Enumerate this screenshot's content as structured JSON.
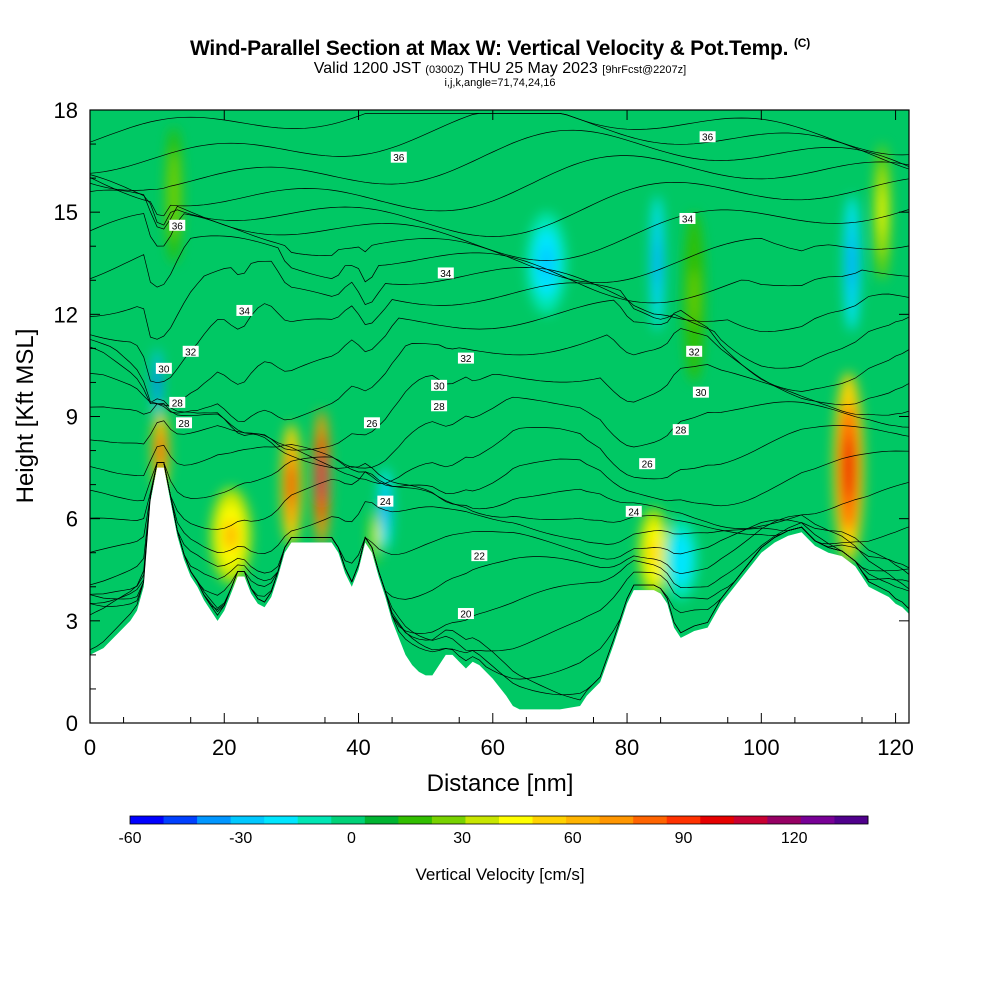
{
  "header": {
    "title": "Wind-Parallel Section at Max W: Vertical Velocity & Pot.Temp.",
    "copyright": "(C)",
    "valid_prefix": "Valid 1200 JST",
    "valid_utc": "(0300Z)",
    "valid_date": "THU 25 May 2023",
    "forecast": "[9hrFcst@2207z]",
    "params": "i,j,k,angle=71,74,24,16"
  },
  "chart_data": {
    "type": "heatmap",
    "xlabel": "Distance [nm]",
    "ylabel": "Height [Kft MSL]",
    "xlim": [
      0,
      122
    ],
    "ylim": [
      0,
      18
    ],
    "x_ticks": [
      0,
      20,
      40,
      60,
      80,
      100,
      120
    ],
    "y_ticks": [
      0,
      3,
      6,
      9,
      12,
      15,
      18
    ],
    "colorbar": {
      "label": "Vertical Velocity [cm/s]",
      "range": [
        -60,
        140
      ],
      "tick_labels": [
        -60,
        -30,
        0,
        30,
        60,
        90,
        120
      ],
      "colors": [
        "#0000ff",
        "#0040ff",
        "#0096ff",
        "#00c8ff",
        "#00e6ff",
        "#00e6b4",
        "#00d278",
        "#00b432",
        "#32be00",
        "#78d200",
        "#c8e600",
        "#ffff00",
        "#ffd200",
        "#ffb400",
        "#ff9600",
        "#ff6400",
        "#ff3200",
        "#e60000",
        "#c80032",
        "#960064",
        "#780096",
        "#50008c"
      ]
    },
    "terrain_profile": [
      [
        0,
        2
      ],
      [
        2,
        2.2
      ],
      [
        4,
        2.6
      ],
      [
        6,
        3
      ],
      [
        7,
        3.3
      ],
      [
        8,
        4
      ],
      [
        9,
        6.5
      ],
      [
        10,
        7.5
      ],
      [
        11,
        7.5
      ],
      [
        12,
        6.5
      ],
      [
        13,
        5.5
      ],
      [
        14,
        4.8
      ],
      [
        15,
        4.3
      ],
      [
        16,
        4
      ],
      [
        17,
        3.6
      ],
      [
        18,
        3.3
      ],
      [
        19,
        3
      ],
      [
        20,
        3.3
      ],
      [
        21,
        3.8
      ],
      [
        22,
        4.3
      ],
      [
        23,
        4.3
      ],
      [
        24,
        3.8
      ],
      [
        25,
        3.5
      ],
      [
        26,
        3.4
      ],
      [
        27,
        3.7
      ],
      [
        28,
        4.3
      ],
      [
        29,
        5
      ],
      [
        30,
        5.3
      ],
      [
        31,
        5.3
      ],
      [
        32,
        5.3
      ],
      [
        33,
        5.3
      ],
      [
        34,
        5.3
      ],
      [
        35,
        5.3
      ],
      [
        36,
        5.3
      ],
      [
        37,
        5
      ],
      [
        38,
        4.4
      ],
      [
        39,
        4
      ],
      [
        40,
        4.5
      ],
      [
        41,
        5.3
      ],
      [
        42,
        5
      ],
      [
        43,
        4.3
      ],
      [
        44,
        3.7
      ],
      [
        45,
        3
      ],
      [
        46,
        2.5
      ],
      [
        47,
        2
      ],
      [
        48,
        1.7
      ],
      [
        49,
        1.5
      ],
      [
        50,
        1.4
      ],
      [
        51,
        1.4
      ],
      [
        52,
        1.7
      ],
      [
        53,
        2
      ],
      [
        54,
        2
      ],
      [
        55,
        1.8
      ],
      [
        56,
        1.6
      ],
      [
        57,
        1.8
      ],
      [
        58,
        1.7
      ],
      [
        60,
        1.3
      ],
      [
        62,
        0.8
      ],
      [
        63,
        0.5
      ],
      [
        64,
        0.4
      ],
      [
        66,
        0.4
      ],
      [
        70,
        0.4
      ],
      [
        73,
        0.5
      ],
      [
        74,
        0.8
      ],
      [
        76,
        1.2
      ],
      [
        78,
        2.3
      ],
      [
        79,
        2.9
      ],
      [
        80,
        3.5
      ],
      [
        81,
        3.9
      ],
      [
        82,
        3.9
      ],
      [
        84,
        3.9
      ],
      [
        85,
        3.8
      ],
      [
        86,
        3.5
      ],
      [
        87,
        2.8
      ],
      [
        88,
        2.5
      ],
      [
        89,
        2.6
      ],
      [
        90,
        2.7
      ],
      [
        92,
        2.8
      ],
      [
        94,
        3.5
      ],
      [
        96,
        4
      ],
      [
        98,
        4.5
      ],
      [
        100,
        5
      ],
      [
        102,
        5.3
      ],
      [
        104,
        5.5
      ],
      [
        106,
        5.6
      ],
      [
        107,
        5.4
      ],
      [
        108,
        5.2
      ],
      [
        110,
        5
      ],
      [
        112,
        4.9
      ],
      [
        114,
        4.6
      ],
      [
        115,
        4.3
      ],
      [
        116,
        4
      ],
      [
        118,
        3.8
      ],
      [
        119,
        3.7
      ],
      [
        120,
        3.5
      ],
      [
        121,
        3.4
      ],
      [
        122,
        3.2
      ]
    ],
    "velocity_features": [
      {
        "x": 10.5,
        "y": 8,
        "value": 90,
        "rx": 1.2,
        "ry": 1.2
      },
      {
        "x": 10,
        "y": 10,
        "value": -45,
        "rx": 0.7,
        "ry": 1.0
      },
      {
        "x": 21,
        "y": 5.5,
        "value": 60,
        "rx": 3,
        "ry": 1.4
      },
      {
        "x": 30,
        "y": 7,
        "value": 95,
        "rx": 1.5,
        "ry": 1.8
      },
      {
        "x": 34.5,
        "y": 7.2,
        "value": 120,
        "rx": 1.2,
        "ry": 2.0
      },
      {
        "x": 44,
        "y": 6.3,
        "value": -40,
        "rx": 1.0,
        "ry": 1.2
      },
      {
        "x": 42.5,
        "y": 5.5,
        "value": 40,
        "rx": 0.8,
        "ry": 0.8
      },
      {
        "x": 84,
        "y": 5,
        "value": 55,
        "rx": 2.2,
        "ry": 1.3
      },
      {
        "x": 88,
        "y": 4.8,
        "value": -20,
        "rx": 2.5,
        "ry": 1.2
      },
      {
        "x": 113,
        "y": 7.5,
        "value": 100,
        "rx": 2.2,
        "ry": 2.8
      },
      {
        "x": 113.5,
        "y": 13.5,
        "value": -40,
        "rx": 1.2,
        "ry": 2.0
      },
      {
        "x": 84.5,
        "y": 13.5,
        "value": -35,
        "rx": 1.0,
        "ry": 2.0
      },
      {
        "x": 68,
        "y": 13.5,
        "value": -25,
        "rx": 3,
        "ry": 1.5
      },
      {
        "x": 90,
        "y": 12.5,
        "value": 25,
        "rx": 1.5,
        "ry": 2.5
      },
      {
        "x": 12.5,
        "y": 15.5,
        "value": 30,
        "rx": 1.2,
        "ry": 2.0
      },
      {
        "x": 118,
        "y": 15,
        "value": 40,
        "rx": 1.2,
        "ry": 2.0
      }
    ],
    "contour_labels": [
      {
        "text": "36",
        "x": 46,
        "y": 16.6
      },
      {
        "text": "36",
        "x": 92,
        "y": 17.2
      },
      {
        "text": "36",
        "x": 13,
        "y": 14.6
      },
      {
        "text": "34",
        "x": 89,
        "y": 14.8
      },
      {
        "text": "34",
        "x": 53,
        "y": 13.2
      },
      {
        "text": "34",
        "x": 23,
        "y": 12.1
      },
      {
        "text": "32",
        "x": 15,
        "y": 10.9
      },
      {
        "text": "32",
        "x": 56,
        "y": 10.7
      },
      {
        "text": "32",
        "x": 90,
        "y": 10.9
      },
      {
        "text": "30",
        "x": 11,
        "y": 10.4
      },
      {
        "text": "30",
        "x": 52,
        "y": 9.9
      },
      {
        "text": "30",
        "x": 91,
        "y": 9.7
      },
      {
        "text": "28",
        "x": 13,
        "y": 9.4
      },
      {
        "text": "28",
        "x": 52,
        "y": 9.3
      },
      {
        "text": "28",
        "x": 88,
        "y": 8.6
      },
      {
        "text": "28",
        "x": 14,
        "y": 8.8
      },
      {
        "text": "26",
        "x": 42,
        "y": 8.8
      },
      {
        "text": "26",
        "x": 83,
        "y": 7.6
      },
      {
        "text": "24",
        "x": 44,
        "y": 6.5
      },
      {
        "text": "24",
        "x": 81,
        "y": 6.2
      },
      {
        "text": "22",
        "x": 58,
        "y": 4.9
      },
      {
        "text": "20",
        "x": 56,
        "y": 3.2
      }
    ]
  }
}
